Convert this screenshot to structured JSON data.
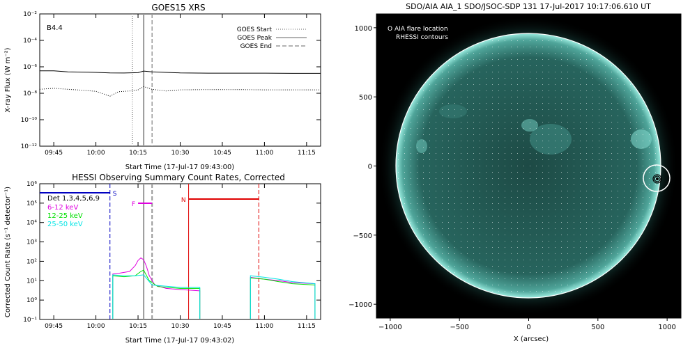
{
  "chart_data": [
    {
      "type": "line",
      "title": "GOES15 XRS",
      "xlabel": "Start Time (17-Jul-17 09:43:00)",
      "ylabel": "X-ray Flux (W m⁻²)",
      "y_scale": "log",
      "ylim": [
        1e-12,
        0.01
      ],
      "xlim": [
        "09:40",
        "11:20"
      ],
      "x_tick_labels": [
        "09:45",
        "10:00",
        "10:15",
        "10:30",
        "10:45",
        "11:00",
        "11:15"
      ],
      "y_tick_labels": [
        "10⁻¹²",
        "10⁻¹⁰",
        "10⁻⁸",
        "10⁻⁶",
        "10⁻⁴",
        "10⁻²"
      ],
      "annotation": "B4.4",
      "legend": [
        "GOES Start",
        "GOES Peak",
        "GOES End"
      ],
      "legend_position": "top-right",
      "markers": [
        {
          "name": "GOES Start",
          "time": "10:13",
          "style": "dotted",
          "color": "#999999"
        },
        {
          "name": "GOES Peak",
          "time": "10:17",
          "style": "solid",
          "color": "#999999"
        },
        {
          "name": "GOES End",
          "time": "10:20",
          "style": "dashed",
          "color": "#999999"
        }
      ],
      "series": [
        {
          "style": "solid",
          "color": "#000000",
          "x": [
            "09:40",
            "09:45",
            "09:50",
            "09:55",
            "10:00",
            "10:05",
            "10:10",
            "10:15",
            "10:17",
            "10:20",
            "10:25",
            "10:30",
            "10:40",
            "10:50",
            "11:00",
            "11:10",
            "11:20"
          ],
          "values": [
            5e-07,
            5e-07,
            4.2e-07,
            4e-07,
            3.8e-07,
            3.5e-07,
            3.4e-07,
            3.6e-07,
            4.8e-07,
            4.2e-07,
            3.8e-07,
            3.5e-07,
            3.3e-07,
            3.3e-07,
            3.3e-07,
            3.2e-07,
            3.2e-07
          ]
        },
        {
          "style": "dotted",
          "color": "#000000",
          "x": [
            "09:40",
            "09:45",
            "09:50",
            "09:55",
            "10:00",
            "10:05",
            "10:08",
            "10:12",
            "10:15",
            "10:17",
            "10:20",
            "10:25",
            "10:30",
            "10:40",
            "10:50",
            "11:00",
            "11:10",
            "11:20"
          ],
          "values": [
            2e-08,
            2.4e-08,
            2e-08,
            1.7e-08,
            1.4e-08,
            6e-09,
            1.3e-08,
            1.5e-08,
            1.8e-08,
            3.2e-08,
            2e-08,
            1.5e-08,
            1.8e-08,
            1.9e-08,
            1.9e-08,
            1.8e-08,
            1.8e-08,
            1.8e-08
          ]
        }
      ]
    },
    {
      "type": "line",
      "title": "HESSI Observing Summary Count Rates, Corrected",
      "xlabel": "Start Time (17-Jul-17 09:43:02)",
      "ylabel": "Corrected Count Rate (s⁻¹ detector⁻¹)",
      "y_scale": "log",
      "ylim": [
        0.1,
        1000000.0
      ],
      "xlim": [
        "09:40",
        "11:20"
      ],
      "x_tick_labels": [
        "09:45",
        "10:00",
        "10:15",
        "10:30",
        "10:45",
        "11:00",
        "11:15"
      ],
      "y_tick_labels": [
        "10⁻¹",
        "10⁰",
        "10¹",
        "10²",
        "10³",
        "10⁴",
        "10⁵",
        "10⁶"
      ],
      "annotation": "Det 1,3,4,5,6,9",
      "legend": [
        "6-12 keV",
        "12-25 keV",
        "25-50 keV"
      ],
      "legend_position": "top-left",
      "series": [
        {
          "name": "6-12 keV",
          "color": "#e000e0",
          "x": [
            "10:06",
            "10:08",
            "10:12",
            "10:14",
            "10:15",
            "10:16",
            "10:17",
            "10:18",
            "10:19",
            "10:21",
            "10:25",
            "10:30",
            "10:37"
          ],
          "values": [
            22,
            24,
            30,
            60,
            110,
            150,
            120,
            55,
            18,
            6,
            4,
            3.5,
            3
          ]
        },
        {
          "name": "12-25 keV",
          "color": "#00e000",
          "x": [
            "10:06",
            "10:10",
            "10:14",
            "10:16",
            "10:17",
            "10:19",
            "10:22",
            "10:30",
            "10:37"
          ],
          "values": [
            18,
            16,
            18,
            30,
            35,
            10,
            5,
            4,
            4
          ]
        },
        {
          "name": "25-50 keV",
          "color": "#00e5e5",
          "x": [
            "10:06",
            "10:10",
            "10:14",
            "10:17",
            "10:20",
            "10:30",
            "10:37"
          ],
          "values": [
            20,
            18,
            18,
            20,
            6,
            4.5,
            4.5
          ]
        },
        {
          "name": "6-12 keV",
          "color": "#e000e0",
          "x": [
            "10:55",
            "11:00",
            "11:05",
            "11:10",
            "11:18"
          ],
          "values": [
            15,
            12,
            10,
            8,
            7
          ]
        },
        {
          "name": "12-25 keV",
          "color": "#00e000",
          "x": [
            "10:55",
            "11:00",
            "11:05",
            "11:10",
            "11:18"
          ],
          "values": [
            14,
            12,
            9,
            7,
            6
          ]
        },
        {
          "name": "25-50 keV",
          "color": "#00e5e5",
          "x": [
            "10:55",
            "11:00",
            "11:05",
            "11:10",
            "11:18"
          ],
          "values": [
            18,
            15,
            12,
            9,
            7
          ]
        }
      ],
      "state_bars": [
        {
          "label": "S",
          "start": "09:40",
          "end": "10:05",
          "color": "#0000c0"
        },
        {
          "label": "F",
          "start": "10:15",
          "end": "10:20",
          "color": "#e000e0"
        },
        {
          "label": "N",
          "start": "10:33",
          "end": "10:58",
          "color": "#e00000"
        }
      ],
      "state_markers": [
        {
          "time": "10:05",
          "color": "#0000c0",
          "style": "dashed"
        },
        {
          "time": "10:33",
          "color": "#e00000",
          "style": "solid"
        },
        {
          "time": "10:58",
          "color": "#e00000",
          "style": "dashed"
        },
        {
          "time": "10:17",
          "color": "#999999",
          "style": "solid"
        },
        {
          "time": "10:20",
          "color": "#999999",
          "style": "dashed"
        }
      ]
    },
    {
      "type": "heatmap",
      "title": "SDO/AIA AIA_1 SDO/JSOC-SDP 131 17-Jul-2017 10:17:06.610 UT",
      "xlabel": "X (arcsec)",
      "ylabel": "",
      "xlim": [
        -1100,
        1100
      ],
      "ylim": [
        -1100,
        1100
      ],
      "x_tick_labels": [
        "−1000",
        "−500",
        "0",
        "500",
        "1000"
      ],
      "y_tick_labels": [
        "−1000",
        "−500",
        "0",
        "500",
        "1000"
      ],
      "legend": [
        "O AIA flare location",
        "RHESSI contours"
      ],
      "legend_position": "top-left",
      "solar_radius_arcsec": 945,
      "flare_location": [
        920,
        -90
      ],
      "colors": {
        "disk": "#2a6e66",
        "limb": "#8fe8dc",
        "background": "#000000"
      }
    }
  ]
}
